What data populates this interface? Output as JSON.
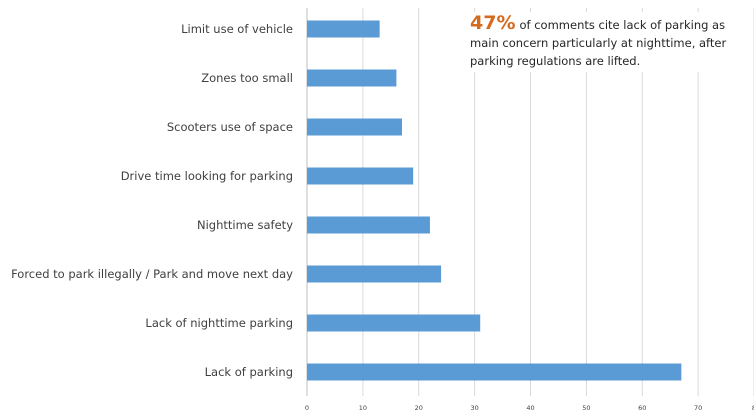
{
  "chart_data": {
    "type": "bar",
    "orientation": "horizontal",
    "categories": [
      "Limit use of vehicle",
      "Zones too small",
      "Scooters use of space",
      "Drive time looking for parking",
      "Nighttime safety",
      "Forced to park illegally / Park and move next day",
      "Lack of nighttime parking",
      "Lack of parking"
    ],
    "values": [
      13,
      16,
      17,
      19,
      22,
      24,
      31,
      67
    ],
    "xlim": [
      0,
      80
    ],
    "xticks": [
      "0",
      "10",
      "20",
      "30",
      "40",
      "50",
      "60",
      "70",
      "8"
    ],
    "grid": true,
    "bar_color": "#5b9bd5",
    "grid_color": "#d9d9d9"
  },
  "annotation": {
    "highlight": "47%",
    "text": "of comments cite lack of parking as main concern particularly at nighttime, after parking regulations are lifted.",
    "highlight_color": "#d46a1e"
  }
}
